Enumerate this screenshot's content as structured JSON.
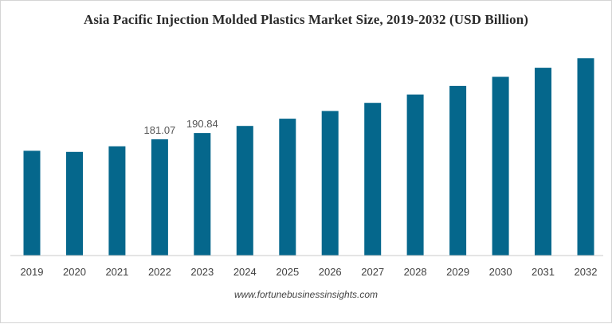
{
  "chart_data": {
    "type": "bar",
    "title": "Asia Pacific Injection Molded Plastics Market Size, 2019-2032 (USD Billion)",
    "xlabel": "",
    "ylabel": "",
    "categories": [
      "2019",
      "2020",
      "2021",
      "2022",
      "2023",
      "2024",
      "2025",
      "2026",
      "2027",
      "2028",
      "2029",
      "2030",
      "2031",
      "2032"
    ],
    "values": [
      163.2,
      161.4,
      170.1,
      181.07,
      190.84,
      201.9,
      213.1,
      225.2,
      237.8,
      250.9,
      264.3,
      278.4,
      292.5,
      307.3
    ],
    "data_labels": {
      "2022": "181.07",
      "2023": "190.84"
    },
    "ylim": [
      0,
      310
    ],
    "grid": false,
    "legend": "none",
    "bar_color": "#05678c",
    "baseline_color": "#c8c8c8"
  },
  "source": "www.fortunebusinessinsights.com"
}
